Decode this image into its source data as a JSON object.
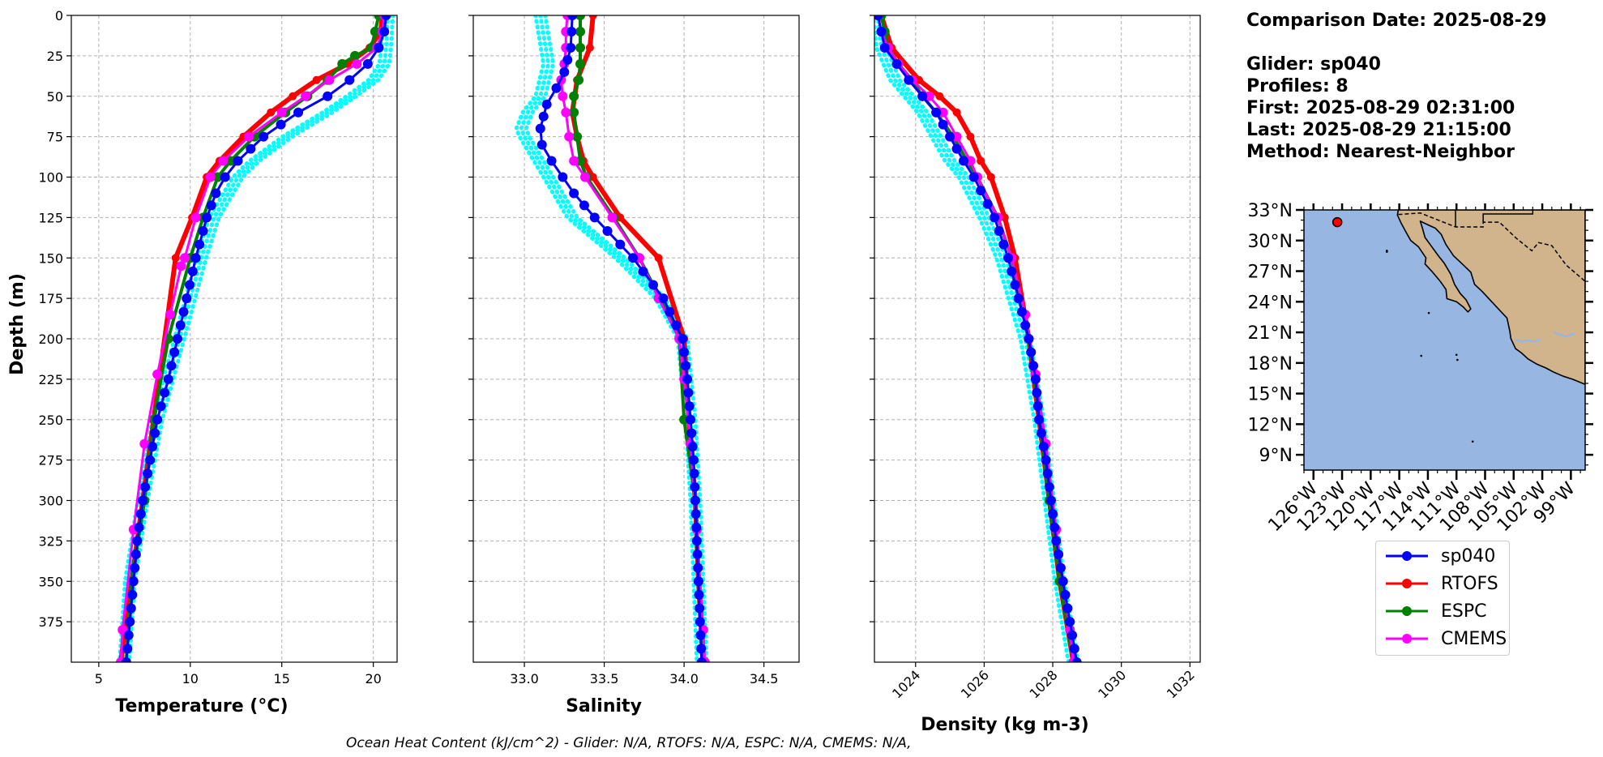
{
  "info": {
    "comparison": "Comparison Date: 2025-08-29",
    "glider": "Glider: sp040",
    "profiles": "Profiles: 8",
    "first": "First: 2025-08-29 02:31:00",
    "last": "Last: 2025-08-29 21:15:00",
    "method": "Method: Nearest-Neighbor"
  },
  "footer": "Ocean Heat Content (kJ/cm^2) - Glider: N/A,  RTOFS: N/A,  ESPC: N/A,  CMEMS: N/A,",
  "colors": {
    "sp040": "#0000ff",
    "RTOFS": "#ff0000",
    "ESPC": "#008000",
    "CMEMS": "#ff00ff",
    "glider_raw": "#00ffff",
    "ocean": "#97b6e1",
    "land": "#d2b48c"
  },
  "legend": [
    {
      "name": "sp040",
      "color": "#0000ff"
    },
    {
      "name": "RTOFS",
      "color": "#ff0000"
    },
    {
      "name": "ESPC",
      "color": "#008000"
    },
    {
      "name": "CMEMS",
      "color": "#ff00ff"
    }
  ],
  "chart_data": [
    {
      "type": "line",
      "xlabel": "Temperature (°C)",
      "ylabel": "Depth (m)",
      "xlim": [
        3.5,
        21.3
      ],
      "ylim": [
        400,
        0
      ],
      "xticks": [
        "5",
        "10",
        "15",
        "20"
      ],
      "yticks": [
        "0",
        "25",
        "50",
        "75",
        "100",
        "125",
        "150",
        "175",
        "200",
        "225",
        "250",
        "275",
        "300",
        "325",
        "350",
        "375"
      ],
      "grid": true,
      "series": [
        {
          "name": "RTOFS",
          "depth": [
            0,
            10,
            20,
            30,
            40,
            50,
            60,
            75,
            90,
            100,
            125,
            150,
            400
          ],
          "values": [
            20.5,
            20.4,
            19.8,
            18.6,
            16.9,
            15.6,
            14.4,
            12.9,
            11.6,
            10.9,
            10.1,
            9.2,
            6.2
          ]
        },
        {
          "name": "ESPC",
          "depth": [
            0,
            10,
            20,
            25,
            30,
            40,
            50,
            60,
            75,
            90,
            100,
            125,
            150,
            200,
            250,
            300,
            350,
            400
          ],
          "values": [
            20.3,
            20.1,
            19.9,
            19.0,
            18.3,
            17.5,
            16.4,
            15.2,
            13.5,
            12.2,
            11.5,
            10.7,
            10.0,
            8.8,
            8.0,
            7.5,
            6.8,
            6.5
          ]
        },
        {
          "name": "CMEMS",
          "depth": [
            0,
            10,
            20,
            30,
            40,
            50,
            60,
            75,
            90,
            100,
            125,
            150,
            155,
            185,
            222,
            265,
            318,
            380,
            400
          ],
          "values": [
            20.6,
            20.5,
            20.2,
            19.1,
            17.6,
            16.3,
            15.0,
            13.2,
            11.8,
            11.1,
            10.3,
            9.7,
            9.5,
            8.9,
            8.2,
            7.5,
            6.9,
            6.3,
            6.2
          ]
        },
        {
          "name": "sp040",
          "depth": [
            0,
            10,
            20,
            30,
            40,
            50,
            60,
            75,
            90,
            100,
            110,
            125,
            150,
            175,
            200,
            225,
            250,
            275,
            300,
            325,
            350,
            375,
            400
          ],
          "values": [
            20.7,
            20.6,
            20.3,
            19.7,
            18.7,
            17.5,
            15.9,
            14.0,
            12.6,
            11.9,
            11.4,
            10.9,
            10.3,
            9.8,
            9.3,
            8.8,
            8.2,
            7.8,
            7.4,
            7.1,
            6.9,
            6.7,
            6.5
          ]
        },
        {
          "name": "glider profiles",
          "depth": [
            0,
            20,
            30,
            40,
            50,
            60,
            75,
            90,
            100,
            125,
            150,
            175,
            200,
            250,
            300,
            350,
            400
          ],
          "values": [
            20.8,
            20.7,
            20.6,
            20.0,
            18.8,
            17.5,
            15.3,
            13.5,
            12.6,
            11.3,
            10.6,
            10.0,
            9.4,
            8.2,
            7.4,
            6.7,
            6.4
          ]
        }
      ]
    },
    {
      "type": "line",
      "xlabel": "Salinity",
      "xlim": [
        32.68,
        34.72
      ],
      "ylim": [
        400,
        0
      ],
      "xticks": [
        "33.0",
        "33.5",
        "34.0",
        "34.5"
      ],
      "grid": true,
      "series": [
        {
          "name": "RTOFS",
          "depth": [
            0,
            20,
            40,
            60,
            75,
            90,
            100,
            125,
            150,
            200,
            250,
            300,
            350,
            400
          ],
          "values": [
            33.43,
            33.41,
            33.33,
            33.3,
            33.33,
            33.37,
            33.43,
            33.6,
            33.84,
            34.0,
            34.03,
            34.07,
            34.09,
            34.12
          ]
        },
        {
          "name": "ESPC",
          "depth": [
            0,
            10,
            20,
            30,
            40,
            50,
            60,
            75,
            90,
            100,
            125,
            150,
            175,
            200,
            250,
            300,
            350,
            400
          ],
          "values": [
            33.35,
            33.35,
            33.35,
            33.35,
            33.34,
            33.31,
            33.31,
            33.33,
            33.35,
            33.39,
            33.56,
            33.72,
            33.85,
            33.97,
            34.0,
            34.07,
            34.09,
            34.12
          ]
        },
        {
          "name": "CMEMS",
          "depth": [
            0,
            10,
            20,
            30,
            40,
            50,
            60,
            75,
            90,
            100,
            125,
            150,
            175,
            200,
            225,
            265,
            318,
            380,
            400
          ],
          "values": [
            33.27,
            33.26,
            33.26,
            33.25,
            33.23,
            33.24,
            33.26,
            33.28,
            33.31,
            33.38,
            33.55,
            33.72,
            33.84,
            33.97,
            34.0,
            34.04,
            34.08,
            34.12,
            34.13
          ]
        },
        {
          "name": "sp040",
          "depth": [
            0,
            20,
            35,
            45,
            55,
            70,
            80,
            90,
            100,
            110,
            125,
            150,
            175,
            200,
            225,
            250,
            275,
            300,
            325,
            350,
            375,
            400
          ],
          "values": [
            33.3,
            33.29,
            33.25,
            33.2,
            33.14,
            33.1,
            33.11,
            33.17,
            33.24,
            33.31,
            33.44,
            33.68,
            33.87,
            33.99,
            34.02,
            34.04,
            34.06,
            34.07,
            34.08,
            34.09,
            34.1,
            34.11
          ]
        },
        {
          "name": "glider profiles",
          "depth": [
            0,
            30,
            50,
            60,
            70,
            75,
            90,
            110,
            125,
            150,
            175,
            200,
            250,
            300,
            350,
            400
          ],
          "values": [
            33.1,
            33.15,
            33.1,
            33.02,
            32.98,
            33.0,
            33.09,
            33.21,
            33.3,
            33.6,
            33.85,
            33.99,
            34.04,
            34.07,
            34.09,
            34.11
          ]
        }
      ]
    },
    {
      "type": "line",
      "xlabel": "Density (kg m-3)",
      "xlim": [
        1022.8,
        1032.3
      ],
      "ylim": [
        400,
        0
      ],
      "xticks": [
        "1024",
        "1026",
        "1028",
        "1030",
        "1032"
      ],
      "grid": true,
      "series": [
        {
          "name": "RTOFS",
          "depth": [
            0,
            20,
            40,
            50,
            60,
            75,
            90,
            100,
            125,
            150,
            200,
            250,
            300,
            350,
            400
          ],
          "values": [
            1023.0,
            1023.3,
            1024.1,
            1024.7,
            1025.2,
            1025.6,
            1025.9,
            1026.2,
            1026.6,
            1026.9,
            1027.3,
            1027.6,
            1027.9,
            1028.2,
            1028.6
          ]
        },
        {
          "name": "ESPC",
          "depth": [
            0,
            10,
            20,
            30,
            40,
            50,
            60,
            75,
            90,
            100,
            125,
            150,
            200,
            250,
            300,
            350,
            400
          ],
          "values": [
            1023.0,
            1023.1,
            1023.2,
            1023.5,
            1023.9,
            1024.2,
            1024.6,
            1025.1,
            1025.5,
            1025.8,
            1026.4,
            1026.8,
            1027.3,
            1027.6,
            1027.9,
            1028.2,
            1028.6
          ]
        },
        {
          "name": "CMEMS",
          "depth": [
            0,
            10,
            20,
            30,
            40,
            50,
            60,
            75,
            90,
            100,
            125,
            150,
            185,
            222,
            265,
            318,
            380,
            400
          ],
          "values": [
            1022.9,
            1023.0,
            1023.2,
            1023.5,
            1023.9,
            1024.4,
            1024.8,
            1025.2,
            1025.6,
            1025.8,
            1026.4,
            1026.8,
            1027.2,
            1027.5,
            1027.8,
            1028.1,
            1028.5,
            1028.6
          ]
        },
        {
          "name": "sp040",
          "depth": [
            0,
            20,
            40,
            50,
            60,
            75,
            90,
            100,
            125,
            150,
            175,
            200,
            225,
            250,
            275,
            300,
            325,
            350,
            375,
            400
          ],
          "values": [
            1022.9,
            1023.1,
            1023.8,
            1024.2,
            1024.6,
            1025.0,
            1025.4,
            1025.7,
            1026.3,
            1026.7,
            1027.0,
            1027.3,
            1027.5,
            1027.6,
            1027.8,
            1027.95,
            1028.1,
            1028.3,
            1028.5,
            1028.7
          ]
        },
        {
          "name": "glider profiles",
          "depth": [
            0,
            20,
            40,
            50,
            60,
            75,
            90,
            100,
            125,
            150,
            200,
            250,
            300,
            350,
            400
          ],
          "values": [
            1022.9,
            1023.0,
            1023.4,
            1023.8,
            1024.2,
            1024.6,
            1025.0,
            1025.4,
            1026.0,
            1026.5,
            1027.2,
            1027.6,
            1027.9,
            1028.2,
            1028.6
          ]
        }
      ]
    },
    {
      "type": "map",
      "lon_ticks": [
        "126°W",
        "123°W",
        "120°W",
        "117°W",
        "114°W",
        "111°W",
        "108°W",
        "105°W",
        "102°W",
        "99°W"
      ],
      "lat_ticks": [
        "33°N",
        "30°N",
        "27°N",
        "24°N",
        "21°N",
        "18°N",
        "15°N",
        "12°N",
        "9°N"
      ],
      "lon_range": [
        -127,
        -97.5
      ],
      "lat_range": [
        7.5,
        33
      ],
      "glider_marker": {
        "lon": -123.5,
        "lat": 31.8
      }
    }
  ]
}
